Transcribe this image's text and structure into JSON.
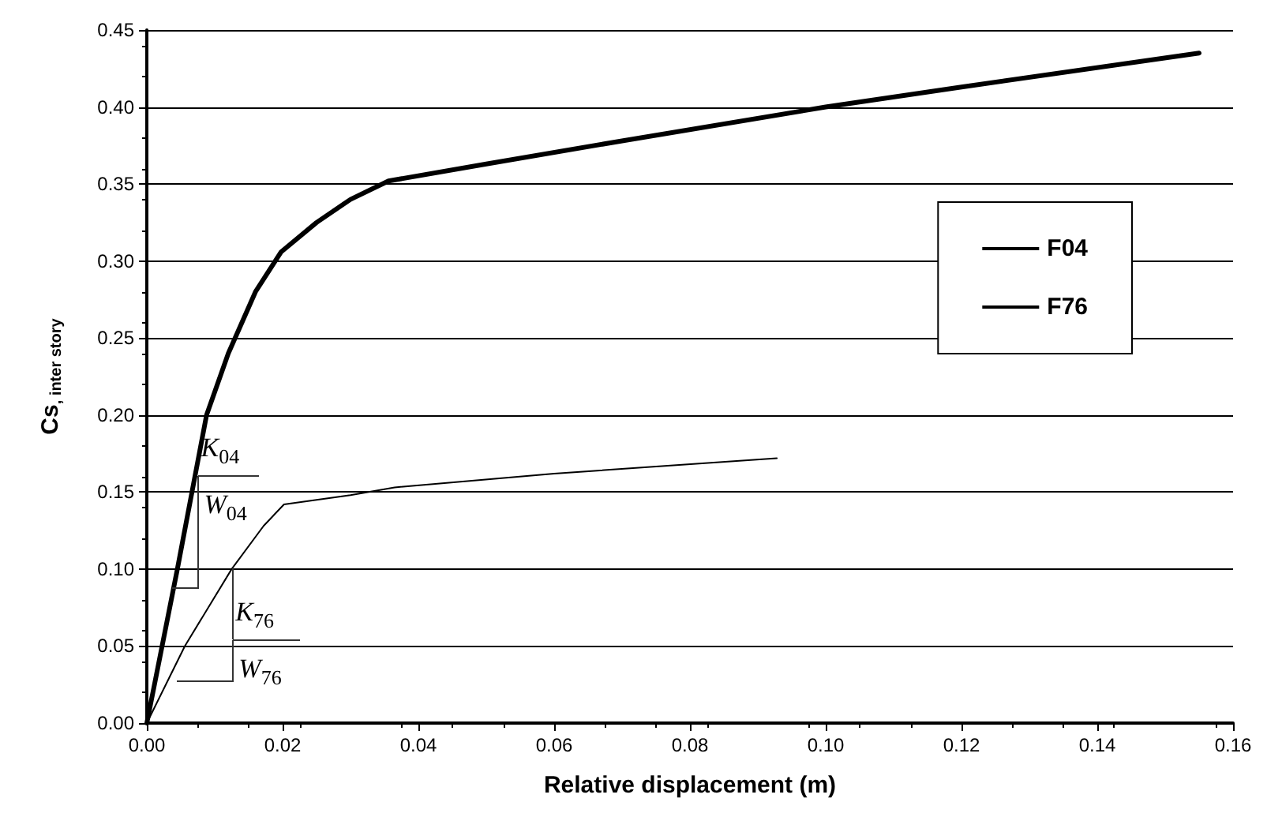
{
  "chart_data": {
    "type": "line",
    "xlabel": "Relative displacement (m)",
    "ylabel": "Cs$_{, inter story}$",
    "xlim": [
      0,
      0.16
    ],
    "ylim": [
      0,
      0.45
    ],
    "xticks": [
      {
        "value": 0,
        "label": "0.00"
      },
      {
        "value": 0.02,
        "label": "0.02"
      },
      {
        "value": 0.04,
        "label": "0.04"
      },
      {
        "value": 0.06,
        "label": "0.06"
      },
      {
        "value": 0.08,
        "label": "0.08"
      },
      {
        "value": 0.1,
        "label": "0.10"
      },
      {
        "value": 0.12,
        "label": "0.12"
      },
      {
        "value": 0.14,
        "label": "0.14"
      },
      {
        "value": 0.16,
        "label": "0.16"
      }
    ],
    "yticks": [
      {
        "value": 0,
        "label": "0.00"
      },
      {
        "value": 0.05,
        "label": "0.05"
      },
      {
        "value": 0.1,
        "label": "0.10"
      },
      {
        "value": 0.15,
        "label": "0.15"
      },
      {
        "value": 0.2,
        "label": "0.20"
      },
      {
        "value": 0.25,
        "label": "0.25"
      },
      {
        "value": 0.3,
        "label": "0.30"
      },
      {
        "value": 0.35,
        "label": "0.35"
      },
      {
        "value": 0.4,
        "label": "0.40"
      },
      {
        "value": 0.45,
        "label": "0.45"
      }
    ],
    "grid": "y",
    "legend": "right",
    "marker": "none",
    "line_style": "solid",
    "series": [
      {
        "name": "F04",
        "color": "#000000",
        "x": [
          0,
          0.0045,
          0.0088,
          0.012,
          0.016,
          0.0198,
          0.025,
          0.03,
          0.0356,
          0.05,
          0.07,
          0.1,
          0.12,
          0.155
        ],
        "values": [
          0,
          0.1,
          0.2,
          0.24,
          0.28,
          0.306,
          0.325,
          0.34,
          0.352,
          0.363,
          0.378,
          0.4,
          0.413,
          0.435
        ]
      },
      {
        "name": "F76",
        "color": "#000000",
        "x": [
          0,
          0.0056,
          0.0125,
          0.0172,
          0.0202,
          0.03,
          0.0365,
          0.06,
          0.0928
        ],
        "values": [
          0,
          0.05,
          0.1,
          0.128,
          0.142,
          0.148,
          0.153,
          0.162,
          0.172
        ]
      }
    ],
    "annotations": [
      {
        "text": "K$_{04}$",
        "x": 0.0075,
        "y": 0.165
      },
      "W$_{04}$",
      {
        "text": "K$_{76}$",
        "x": 0.0126,
        "y": 0.1
      },
      "W$_{76}$"
    ]
  }
}
